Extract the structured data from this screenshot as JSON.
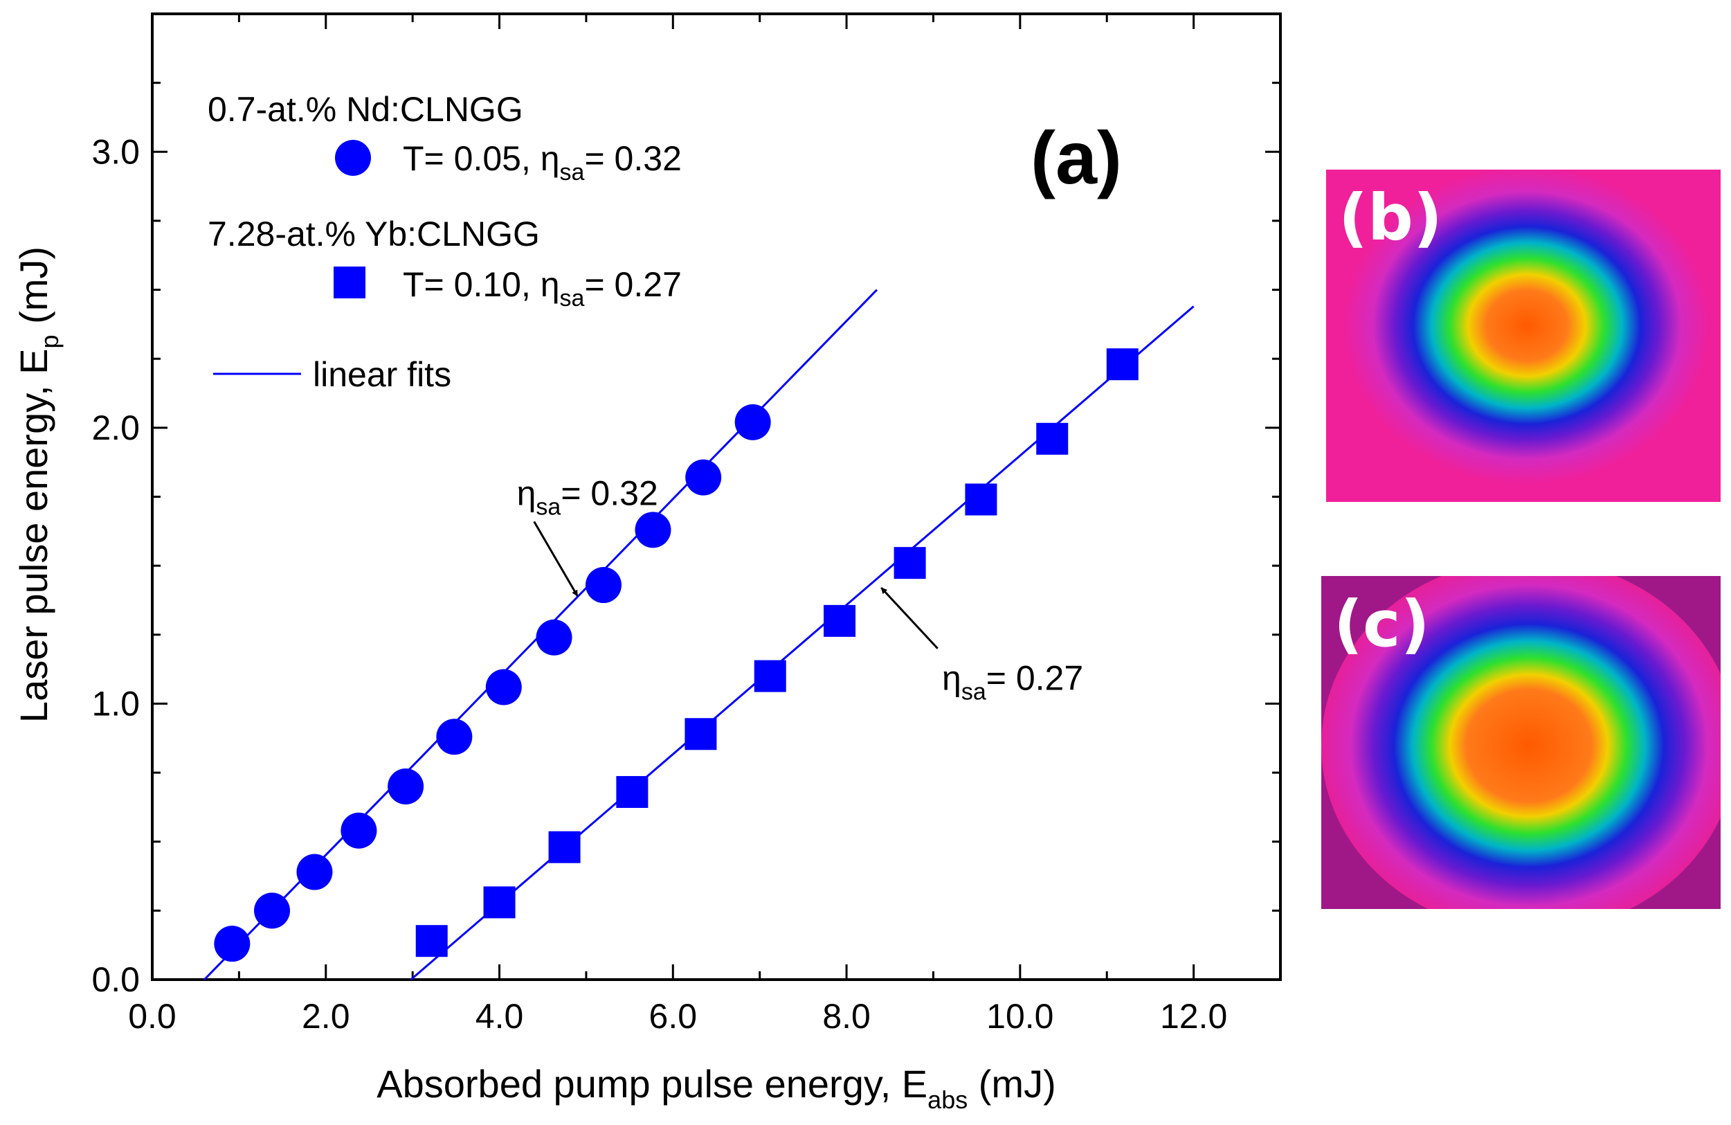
{
  "chart_data": {
    "type": "scatter",
    "title": "",
    "panel_label": "(a)",
    "xlabel": {
      "main": "Absorbed pump pulse energy, E",
      "sub": "abs",
      "unit": " (mJ)"
    },
    "ylabel": {
      "main": "Laser pulse energy, E",
      "sub": "p",
      "unit": " (mJ)"
    },
    "xlim": [
      0,
      13
    ],
    "ylim": [
      0,
      3.5
    ],
    "x_ticks": [
      0,
      2,
      4,
      6,
      8,
      10,
      12
    ],
    "x_tick_labels": [
      "0.0",
      "2.0",
      "4.0",
      "6.0",
      "8.0",
      "10.0",
      "12.0"
    ],
    "y_ticks": [
      0,
      1,
      2,
      3
    ],
    "y_tick_labels": [
      "0.0",
      "1.0",
      "2.0",
      "3.0"
    ],
    "series": [
      {
        "name": "0.7-at.% Nd:CLNGG",
        "legend_text": "T= 0.05, ",
        "eta_value": "= 0.32",
        "marker": "circle",
        "color": "#0000ff",
        "x": [
          0.92,
          1.38,
          1.87,
          2.38,
          2.92,
          3.48,
          4.05,
          4.63,
          5.2,
          5.77,
          6.35,
          6.92
        ],
        "y": [
          0.13,
          0.25,
          0.39,
          0.54,
          0.7,
          0.88,
          1.06,
          1.24,
          1.43,
          1.63,
          1.82,
          2.02
        ],
        "fit": {
          "x": [
            0.6,
            8.35
          ],
          "y": [
            0.0,
            2.5
          ]
        }
      },
      {
        "name": "7.28-at.% Yb:CLNGG",
        "legend_text": "T= 0.10, ",
        "eta_value": "= 0.27",
        "marker": "square",
        "color": "#0000ff",
        "x": [
          3.22,
          4.0,
          4.75,
          5.53,
          6.32,
          7.12,
          7.92,
          8.73,
          9.55,
          10.37,
          11.18
        ],
        "y": [
          0.14,
          0.28,
          0.48,
          0.68,
          0.89,
          1.1,
          1.3,
          1.51,
          1.74,
          1.96,
          2.23
        ],
        "fit": {
          "x": [
            2.98,
            12.0
          ],
          "y": [
            0.0,
            2.44
          ]
        }
      }
    ],
    "legend": {
      "fit_label": "linear fits",
      "eta_symbol": "η",
      "eta_sub": "sa"
    },
    "annotations": [
      {
        "symbol": "η",
        "sub": "sa",
        "text": "= 0.32",
        "label_at": [
          4.2,
          1.72
        ],
        "arrow_tail": [
          4.4,
          1.66
        ],
        "arrow_head": [
          4.9,
          1.39
        ]
      },
      {
        "symbol": "η",
        "sub": "sa",
        "text": "= 0.27",
        "label_at": [
          9.1,
          1.05
        ],
        "arrow_tail": [
          9.05,
          1.2
        ],
        "arrow_head": [
          8.4,
          1.42
        ]
      }
    ]
  },
  "beam_profiles": [
    {
      "label": "(b)",
      "icon": "beam-profile-image"
    },
    {
      "label": "(c)",
      "icon": "beam-profile-image"
    }
  ],
  "colors": {
    "series": "#0000ff",
    "axis": "#000000",
    "arrow": "#000000"
  }
}
